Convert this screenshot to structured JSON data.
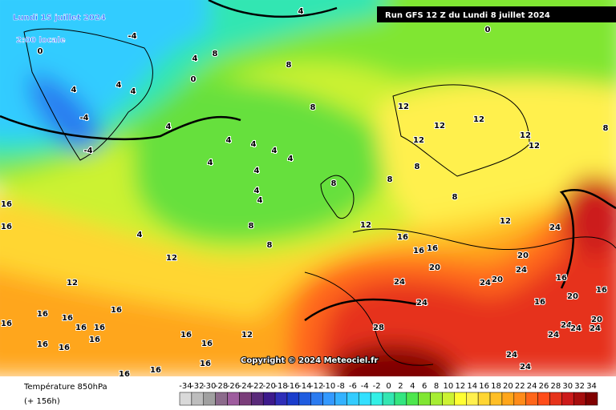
{
  "header": {
    "date": "Lundi 15 juillet 2024",
    "time": "2:00 locale",
    "run": "Run GFS 12 Z du Lundi 8 juillet 2024"
  },
  "copyright": "Copyright © 2024 Meteociel.fr",
  "legend": {
    "title": "Température 850hPa",
    "lead": "(+ 156h)",
    "labels": [
      -34,
      -32,
      -30,
      -28,
      -26,
      -24,
      -22,
      -20,
      -18,
      -16,
      -14,
      -12,
      -10,
      -8,
      -6,
      -4,
      -2,
      0,
      2,
      4,
      6,
      8,
      10,
      12,
      14,
      16,
      18,
      20,
      22,
      24,
      26,
      28,
      30,
      32,
      34
    ],
    "colors": [
      "#d9d9d9",
      "#bdbdbd",
      "#a0a0a0",
      "#8c6b8c",
      "#9e5c9e",
      "#7a3d7a",
      "#5a2a7a",
      "#3d1a8c",
      "#2e2eb8",
      "#1a3dcc",
      "#1f5ce0",
      "#2b7bf0",
      "#3399ff",
      "#33b2ff",
      "#33ccff",
      "#33e0ff",
      "#33f0e6",
      "#33e6b2",
      "#33e680",
      "#4de64d",
      "#80e633",
      "#a6ed33",
      "#ccf233",
      "#ffff33",
      "#fff04d",
      "#ffd633",
      "#ffbf26",
      "#ffa61a",
      "#ff8c1a",
      "#ff661a",
      "#ff4d1a",
      "#e6331a",
      "#cc1a1a",
      "#a60d0d",
      "#800000"
    ]
  },
  "contour_labels": [
    4,
    0,
    -4,
    0,
    4,
    8,
    0,
    8,
    4,
    4,
    4,
    -4,
    -4,
    4,
    8,
    12,
    12,
    12,
    12,
    12,
    12,
    8,
    4,
    4,
    4,
    4,
    4,
    4,
    4,
    4,
    8,
    8,
    8,
    8,
    8,
    8,
    4,
    12,
    12,
    16,
    16,
    16,
    16,
    16,
    12,
    12,
    24,
    20,
    24,
    20,
    24,
    20,
    16,
    16,
    20,
    16,
    24,
    24,
    28,
    20,
    24,
    24,
    24,
    24,
    16,
    16,
    16,
    16,
    16,
    16,
    16,
    16,
    16,
    16,
    16,
    12,
    16,
    16,
    16,
    24,
    24
  ]
}
